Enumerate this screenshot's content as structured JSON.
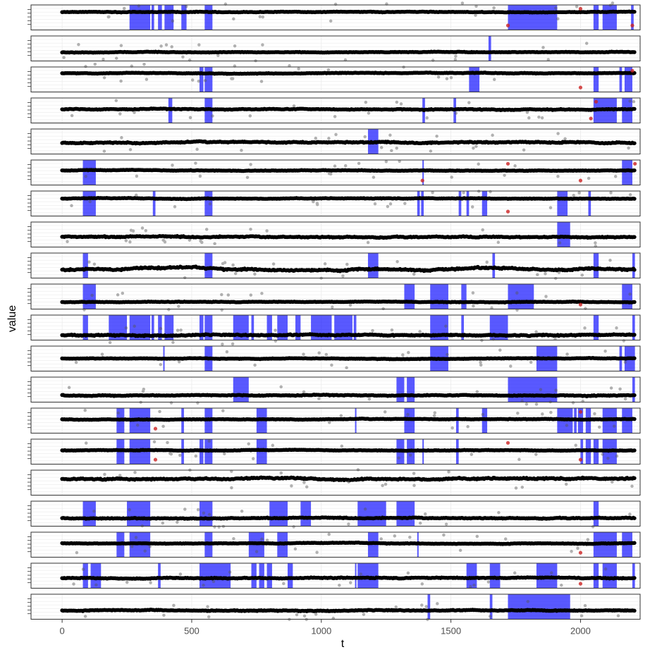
{
  "chart_data": {
    "type": "scatter",
    "title": "",
    "xlabel": "t",
    "ylabel": "value",
    "xlim": [
      -120,
      2230
    ],
    "x_ticks": [
      0,
      500,
      1000,
      1500,
      2000
    ],
    "x_tick_labels": [
      "0",
      "500",
      "1000",
      "1500",
      "2000"
    ],
    "grid": true,
    "legend": "none",
    "facet_layout": "20 stacked horizontal panels sharing the t axis",
    "colors": {
      "points": "#000000",
      "highlight_band": "#0000ff",
      "anomaly_points": "#cc2222",
      "panel_background": "#ffffff",
      "grid": "#ebebeb",
      "panel_border": "#333333"
    },
    "t_range": [
      0,
      2210
    ],
    "panels": [
      {
        "level": 0.72,
        "noise": 0.02,
        "bands": [
          [
            260,
            340
          ],
          [
            345,
            355
          ],
          [
            370,
            385
          ],
          [
            395,
            430
          ],
          [
            460,
            480
          ],
          [
            550,
            580
          ],
          [
            1720,
            1910
          ],
          [
            2050,
            2070
          ],
          [
            2085,
            2140
          ],
          [
            2195,
            2205
          ]
        ],
        "anomalies": [
          1720,
          2000,
          2200
        ]
      },
      {
        "level": 0.35,
        "noise": 0.02,
        "bands": [
          [
            1645,
            1655
          ]
        ],
        "anomalies": []
      },
      {
        "level": 0.75,
        "noise": 0.02,
        "bands": [
          [
            530,
            545
          ],
          [
            550,
            580
          ],
          [
            1570,
            1610
          ],
          [
            2050,
            2070
          ],
          [
            2150,
            2160
          ],
          [
            2170,
            2200
          ]
        ],
        "anomalies": [
          2000,
          2200
        ]
      },
      {
        "level": 0.55,
        "noise": 0.03,
        "bands": [
          [
            410,
            425
          ],
          [
            550,
            580
          ],
          [
            1390,
            1400
          ],
          [
            1510,
            1520
          ],
          [
            2050,
            2140
          ],
          [
            2160,
            2200
          ]
        ],
        "anomalies": [
          2040,
          2060
        ]
      },
      {
        "level": 0.45,
        "noise": 0.04,
        "bands": [
          [
            1180,
            1220
          ]
        ],
        "anomalies": []
      },
      {
        "level": 0.58,
        "noise": 0.02,
        "bands": [
          [
            80,
            130
          ],
          [
            1390,
            1395
          ],
          [
            2160,
            2200
          ]
        ],
        "anomalies": [
          1390,
          1720,
          2000,
          2210
        ]
      },
      {
        "level": 0.7,
        "noise": 0.02,
        "bands": [
          [
            80,
            130
          ],
          [
            350,
            360
          ],
          [
            550,
            580
          ],
          [
            1370,
            1380
          ],
          [
            1385,
            1395
          ],
          [
            1530,
            1540
          ],
          [
            1560,
            1570
          ],
          [
            1620,
            1640
          ],
          [
            1910,
            1950
          ],
          [
            2030,
            2040
          ]
        ],
        "anomalies": [
          1720
        ]
      },
      {
        "level": 0.4,
        "noise": 0.04,
        "bands": [
          [
            1910,
            1960
          ]
        ],
        "anomalies": []
      },
      {
        "level": 0.35,
        "noise": 0.06,
        "bands": [
          [
            80,
            100
          ],
          [
            550,
            580
          ],
          [
            1180,
            1220
          ],
          [
            1660,
            1670
          ],
          [
            2050,
            2070
          ],
          [
            2200,
            2210
          ]
        ],
        "anomalies": []
      },
      {
        "level": 0.28,
        "noise": 0.02,
        "bands": [
          [
            80,
            130
          ],
          [
            1320,
            1360
          ],
          [
            1420,
            1490
          ],
          [
            1540,
            1560
          ],
          [
            1720,
            1820
          ],
          [
            2160,
            2200
          ]
        ],
        "anomalies": [
          2000
        ]
      },
      {
        "level": 0.2,
        "noise": 0.04,
        "bands": [
          [
            80,
            100
          ],
          [
            180,
            250
          ],
          [
            260,
            340
          ],
          [
            345,
            355
          ],
          [
            370,
            385
          ],
          [
            395,
            430
          ],
          [
            530,
            545
          ],
          [
            550,
            580
          ],
          [
            660,
            720
          ],
          [
            730,
            740
          ],
          [
            790,
            810
          ],
          [
            830,
            870
          ],
          [
            900,
            920
          ],
          [
            960,
            1040
          ],
          [
            1050,
            1120
          ],
          [
            1125,
            1135
          ],
          [
            1420,
            1490
          ],
          [
            1540,
            1550
          ],
          [
            1650,
            1720
          ],
          [
            2050,
            2070
          ],
          [
            2200,
            2210
          ]
        ],
        "anomalies": []
      },
      {
        "level": 0.5,
        "noise": 0.02,
        "bands": [
          [
            390,
            395
          ],
          [
            550,
            580
          ],
          [
            1420,
            1490
          ],
          [
            1830,
            1910
          ],
          [
            2150,
            2160
          ],
          [
            2170,
            2210
          ]
        ],
        "anomalies": []
      },
      {
        "level": 0.27,
        "noise": 0.03,
        "bands": [
          [
            660,
            720
          ],
          [
            1290,
            1320
          ],
          [
            1330,
            1360
          ],
          [
            1720,
            1910
          ],
          [
            2200,
            2210
          ]
        ],
        "anomalies": []
      },
      {
        "level": 0.55,
        "noise": 0.02,
        "bands": [
          [
            210,
            240
          ],
          [
            260,
            340
          ],
          [
            460,
            470
          ],
          [
            550,
            580
          ],
          [
            750,
            790
          ],
          [
            1130,
            1135
          ],
          [
            1320,
            1360
          ],
          [
            1520,
            1530
          ],
          [
            1620,
            1640
          ],
          [
            1910,
            1970
          ],
          [
            1975,
            1985
          ],
          [
            1990,
            2010
          ],
          [
            2020,
            2040
          ],
          [
            2085,
            2140
          ],
          [
            2160,
            2200
          ]
        ],
        "anomalies": [
          360,
          2000
        ]
      },
      {
        "level": 0.55,
        "noise": 0.02,
        "bands": [
          [
            210,
            240
          ],
          [
            260,
            340
          ],
          [
            460,
            470
          ],
          [
            530,
            545
          ],
          [
            550,
            580
          ],
          [
            750,
            790
          ],
          [
            1290,
            1320
          ],
          [
            1330,
            1360
          ],
          [
            1390,
            1395
          ],
          [
            1520,
            1530
          ],
          [
            2000,
            2010
          ],
          [
            2020,
            2040
          ],
          [
            2050,
            2070
          ],
          [
            2085,
            2140
          ]
        ],
        "anomalies": [
          360,
          1720,
          2000
        ]
      },
      {
        "level": 0.65,
        "noise": 0.05,
        "bands": [],
        "anomalies": []
      },
      {
        "level": 0.32,
        "noise": 0.03,
        "bands": [
          [
            80,
            130
          ],
          [
            250,
            340
          ],
          [
            530,
            580
          ],
          [
            800,
            870
          ],
          [
            920,
            960
          ],
          [
            1140,
            1250
          ],
          [
            1290,
            1360
          ],
          [
            2050,
            2070
          ]
        ],
        "anomalies": []
      },
      {
        "level": 0.55,
        "noise": 0.02,
        "bands": [
          [
            210,
            240
          ],
          [
            260,
            340
          ],
          [
            550,
            580
          ],
          [
            720,
            780
          ],
          [
            830,
            870
          ],
          [
            1180,
            1220
          ],
          [
            1370,
            1375
          ],
          [
            2050,
            2140
          ],
          [
            2160,
            2200
          ]
        ],
        "anomalies": [
          2000
        ]
      },
      {
        "level": 0.4,
        "noise": 0.03,
        "bands": [
          [
            80,
            100
          ],
          [
            110,
            150
          ],
          [
            370,
            380
          ],
          [
            530,
            650
          ],
          [
            730,
            750
          ],
          [
            760,
            780
          ],
          [
            790,
            810
          ],
          [
            870,
            890
          ],
          [
            1130,
            1135
          ],
          [
            1140,
            1220
          ],
          [
            1560,
            1600
          ],
          [
            1650,
            1690
          ],
          [
            1830,
            1910
          ],
          [
            2050,
            2070
          ],
          [
            2085,
            2140
          ],
          [
            2200,
            2210
          ]
        ],
        "anomalies": [
          2000
        ]
      },
      {
        "level": 0.35,
        "noise": 0.03,
        "bands": [
          [
            1410,
            1420
          ],
          [
            1650,
            1660
          ],
          [
            1720,
            1960
          ]
        ],
        "anomalies": []
      }
    ]
  }
}
